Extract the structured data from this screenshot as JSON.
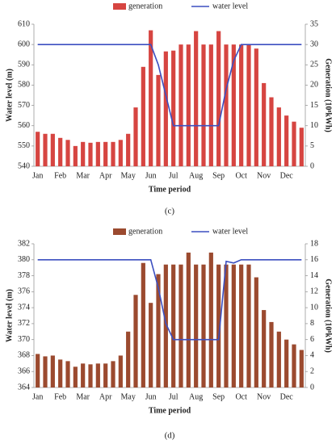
{
  "chart_data": [
    {
      "type": "bar",
      "caption": "(c)",
      "ylabel": "Water level (m)",
      "y2label": "Generation (10⁸kWh)",
      "xlabel": "Time period",
      "categories": [
        "Jan",
        null,
        null,
        "Feb",
        null,
        null,
        "Mar",
        null,
        null,
        "Apr",
        null,
        null,
        "May",
        null,
        null,
        "Jun",
        null,
        null,
        "Jul",
        null,
        null,
        "Aug",
        null,
        null,
        "Sep",
        null,
        null,
        "Oct",
        null,
        null,
        "Nov",
        null,
        null,
        "Dec",
        null,
        null
      ],
      "ylim": [
        540,
        610
      ],
      "yticks": [
        540,
        550,
        560,
        570,
        580,
        590,
        600,
        610
      ],
      "y2lim": [
        0,
        35
      ],
      "y2ticks": [
        0,
        5,
        10,
        15,
        20,
        25,
        30,
        35
      ],
      "series": [
        {
          "name": "generation",
          "type": "bar",
          "axis": "y2",
          "color": "#d64541",
          "values": [
            8.5,
            8,
            8,
            7,
            6.5,
            5,
            6,
            5.8,
            6,
            6,
            6,
            6.5,
            8,
            14.5,
            24.5,
            33.5,
            22.5,
            28.3,
            28.5,
            30,
            30,
            33.3,
            30,
            30,
            33.3,
            30,
            30,
            30,
            30,
            29,
            20.5,
            17,
            14.5,
            12.5,
            11,
            9.5
          ]
        },
        {
          "name": "water level",
          "type": "line",
          "axis": "y",
          "color": "#3c4fc0",
          "values": [
            600,
            600,
            600,
            600,
            600,
            600,
            600,
            600,
            600,
            600,
            600,
            600,
            600,
            600,
            600,
            600,
            590,
            575,
            560,
            560,
            560,
            560,
            560,
            560,
            560,
            578,
            592,
            600,
            600,
            600,
            600,
            600,
            600,
            600,
            600,
            600
          ]
        }
      ]
    },
    {
      "type": "bar",
      "caption": "(d)",
      "ylabel": "Water level (m)",
      "y2label": "Generation (10⁸kWh)",
      "xlabel": "Time period",
      "categories": [
        "Jan",
        null,
        null,
        "Feb",
        null,
        null,
        "Mar",
        null,
        null,
        "Apr",
        null,
        null,
        "May",
        null,
        null,
        "Jun",
        null,
        null,
        "Jul",
        null,
        null,
        "Aug",
        null,
        null,
        "Sep",
        null,
        null,
        "Oct",
        null,
        null,
        "Nov",
        null,
        null,
        "Dec",
        null,
        null
      ],
      "ylim": [
        364,
        382
      ],
      "yticks": [
        364,
        366,
        368,
        370,
        372,
        374,
        376,
        378,
        380,
        382
      ],
      "y2lim": [
        0,
        18
      ],
      "y2ticks": [
        0,
        2,
        4,
        6,
        8,
        10,
        12,
        14,
        16,
        18
      ],
      "series": [
        {
          "name": "generation",
          "type": "bar",
          "axis": "y2",
          "color": "#9b4a2f",
          "values": [
            4.2,
            3.9,
            4,
            3.5,
            3.3,
            2.6,
            3,
            2.9,
            3,
            3,
            3.3,
            4,
            7,
            11.6,
            15.6,
            10.6,
            14.2,
            15.4,
            15.4,
            15.4,
            16.9,
            15.4,
            15.4,
            16.9,
            15.4,
            15.4,
            15.4,
            15.4,
            15.4,
            13.8,
            9.7,
            8.2,
            7,
            6,
            5.4,
            4.7
          ]
        },
        {
          "name": "water level",
          "type": "line",
          "axis": "y",
          "color": "#3c4fc0",
          "values": [
            380,
            380,
            380,
            380,
            380,
            380,
            380,
            380,
            380,
            380,
            380,
            380,
            380,
            380,
            380,
            380,
            376.5,
            372,
            370,
            370,
            370,
            370,
            370,
            370,
            370,
            379.8,
            379.6,
            380,
            380,
            380,
            380,
            380,
            380,
            380,
            380,
            380
          ]
        }
      ]
    }
  ]
}
